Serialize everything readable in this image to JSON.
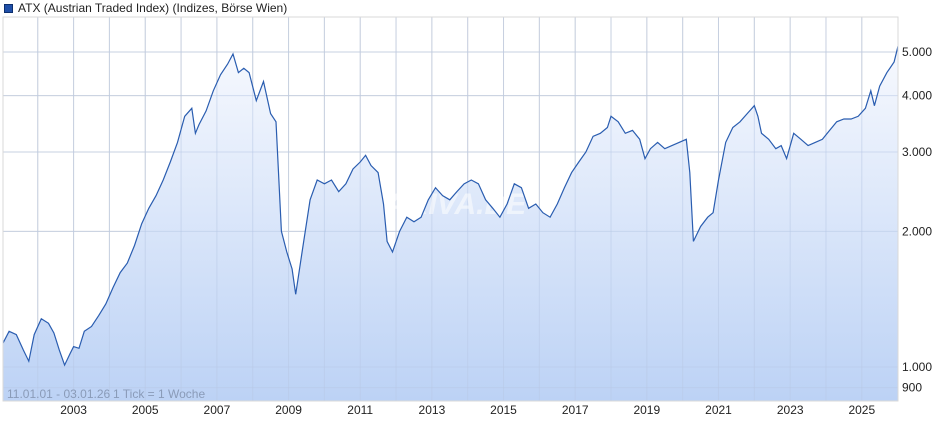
{
  "legend": {
    "label": "ATX (Austrian Traded Index) (Indizes, Börse Wien)",
    "color": "#1f4fa8"
  },
  "info": {
    "range": "11.01.01 - 03.01.26",
    "tick": "1 Tick = 1 Woche"
  },
  "watermark": "ARIVA.DE",
  "colors": {
    "line": "#2a5db0",
    "fill_top": "#f4f7fd",
    "fill_bottom": "#bcd2f5",
    "grid": "#d9d9d9"
  },
  "chart_data": {
    "type": "area",
    "title": "ATX (Austrian Traded Index) (Indizes, Börse Wien)",
    "xlabel": "",
    "ylabel": "",
    "yscale": "log",
    "ylim": [
      830,
      5600
    ],
    "xlim": [
      2001.03,
      2026.01
    ],
    "grid": true,
    "legend_position": "top-left",
    "x_ticks": [
      "2003",
      "2005",
      "2007",
      "2009",
      "2011",
      "2013",
      "2015",
      "2017",
      "2019",
      "2021",
      "2023",
      "2025"
    ],
    "y_ticks": [
      "900",
      "1.000",
      "2.000",
      "3.000",
      "4.000",
      "5.000"
    ],
    "annotations": [
      "11.01.01 - 03.01.26",
      "1 Tick = 1 Woche"
    ],
    "x": [
      2001.03,
      2001.2,
      2001.4,
      2001.6,
      2001.75,
      2001.9,
      2002.1,
      2002.3,
      2002.45,
      2002.6,
      2002.75,
      2002.9,
      2003.0,
      2003.15,
      2003.3,
      2003.5,
      2003.7,
      2003.9,
      2004.1,
      2004.3,
      2004.5,
      2004.7,
      2004.9,
      2005.1,
      2005.3,
      2005.5,
      2005.7,
      2005.9,
      2006.1,
      2006.3,
      2006.4,
      2006.5,
      2006.7,
      2006.9,
      2007.1,
      2007.3,
      2007.45,
      2007.6,
      2007.75,
      2007.9,
      2008.1,
      2008.3,
      2008.5,
      2008.65,
      2008.8,
      2008.95,
      2009.1,
      2009.2,
      2009.4,
      2009.6,
      2009.8,
      2010.0,
      2010.2,
      2010.4,
      2010.6,
      2010.8,
      2011.0,
      2011.15,
      2011.3,
      2011.5,
      2011.65,
      2011.75,
      2011.9,
      2012.1,
      2012.3,
      2012.5,
      2012.7,
      2012.9,
      2013.1,
      2013.3,
      2013.5,
      2013.7,
      2013.9,
      2014.1,
      2014.3,
      2014.5,
      2014.7,
      2014.9,
      2015.1,
      2015.3,
      2015.5,
      2015.7,
      2015.9,
      2016.1,
      2016.3,
      2016.5,
      2016.7,
      2016.9,
      2017.1,
      2017.3,
      2017.5,
      2017.7,
      2017.9,
      2018.0,
      2018.2,
      2018.4,
      2018.6,
      2018.8,
      2018.95,
      2019.1,
      2019.3,
      2019.5,
      2019.7,
      2019.9,
      2020.1,
      2020.2,
      2020.3,
      2020.5,
      2020.7,
      2020.85,
      2021.0,
      2021.2,
      2021.4,
      2021.6,
      2021.8,
      2022.0,
      2022.1,
      2022.2,
      2022.4,
      2022.6,
      2022.75,
      2022.9,
      2023.1,
      2023.3,
      2023.5,
      2023.7,
      2023.9,
      2024.1,
      2024.3,
      2024.5,
      2024.7,
      2024.9,
      2025.1,
      2025.25,
      2025.35,
      2025.5,
      2025.7,
      2025.9,
      2026.01
    ],
    "values": [
      1130,
      1200,
      1180,
      1090,
      1030,
      1180,
      1280,
      1250,
      1190,
      1090,
      1010,
      1070,
      1110,
      1100,
      1200,
      1230,
      1300,
      1380,
      1500,
      1620,
      1700,
      1860,
      2080,
      2250,
      2400,
      2600,
      2850,
      3150,
      3600,
      3750,
      3300,
      3450,
      3700,
      4100,
      4450,
      4700,
      4950,
      4500,
      4600,
      4500,
      3900,
      4300,
      3650,
      3500,
      2000,
      1800,
      1650,
      1450,
      1850,
      2350,
      2600,
      2550,
      2600,
      2450,
      2550,
      2750,
      2850,
      2950,
      2800,
      2700,
      2300,
      1900,
      1800,
      2000,
      2150,
      2100,
      2150,
      2350,
      2500,
      2400,
      2350,
      2450,
      2550,
      2600,
      2550,
      2350,
      2250,
      2150,
      2300,
      2550,
      2500,
      2250,
      2300,
      2200,
      2150,
      2300,
      2500,
      2700,
      2850,
      3000,
      3250,
      3300,
      3400,
      3600,
      3500,
      3300,
      3350,
      3200,
      2900,
      3050,
      3150,
      3050,
      3100,
      3150,
      3200,
      2700,
      1900,
      2050,
      2150,
      2200,
      2600,
      3150,
      3400,
      3500,
      3650,
      3800,
      3600,
      3300,
      3200,
      3050,
      3100,
      2900,
      3300,
      3200,
      3100,
      3150,
      3200,
      3350,
      3500,
      3550,
      3550,
      3600,
      3750,
      4100,
      3800,
      4200,
      4500,
      4750,
      5150
    ]
  }
}
